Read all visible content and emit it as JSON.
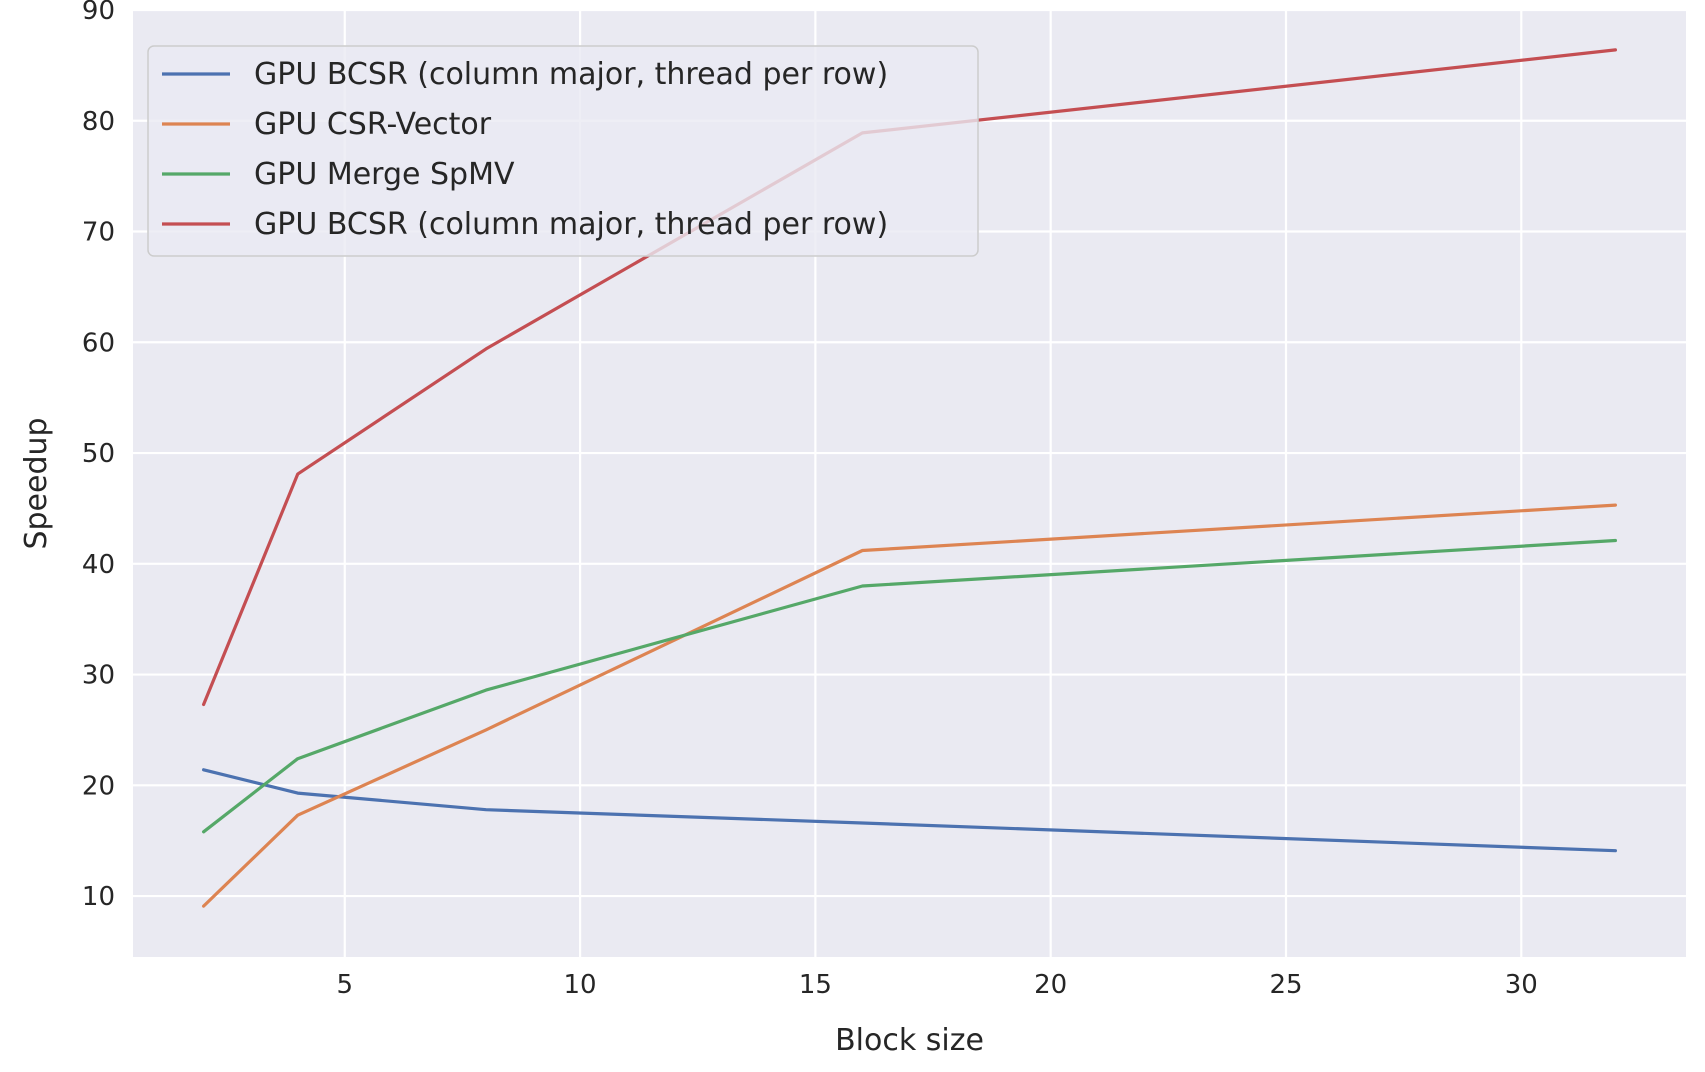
{
  "chart_data": {
    "type": "line",
    "title": "",
    "xlabel": "Block size",
    "ylabel": "Speedup",
    "xlim": [
      0.5,
      33.5
    ],
    "ylim": [
      4.5,
      90
    ],
    "xticks": [
      5,
      10,
      15,
      20,
      25,
      30
    ],
    "yticks": [
      10,
      20,
      30,
      40,
      50,
      60,
      70,
      80,
      90
    ],
    "x": [
      2,
      4,
      8,
      16,
      32
    ],
    "grid": true,
    "legend_position": "top-left",
    "series": [
      {
        "name": "GPU BCSR (column major, thread per row)",
        "color": "#4c72b0",
        "values": [
          21.4,
          19.3,
          17.8,
          16.6,
          14.1
        ]
      },
      {
        "name": "GPU CSR-Vector",
        "color": "#dd8452",
        "values": [
          9.1,
          17.3,
          25.0,
          41.2,
          45.3
        ]
      },
      {
        "name": "GPU Merge SpMV",
        "color": "#55a868",
        "values": [
          15.8,
          22.4,
          28.6,
          38.0,
          42.1
        ]
      },
      {
        "name": "GPU BCSR (column major, thread per row)",
        "color": "#c44e52",
        "values": [
          27.3,
          48.1,
          59.4,
          78.9,
          86.4
        ]
      }
    ]
  }
}
